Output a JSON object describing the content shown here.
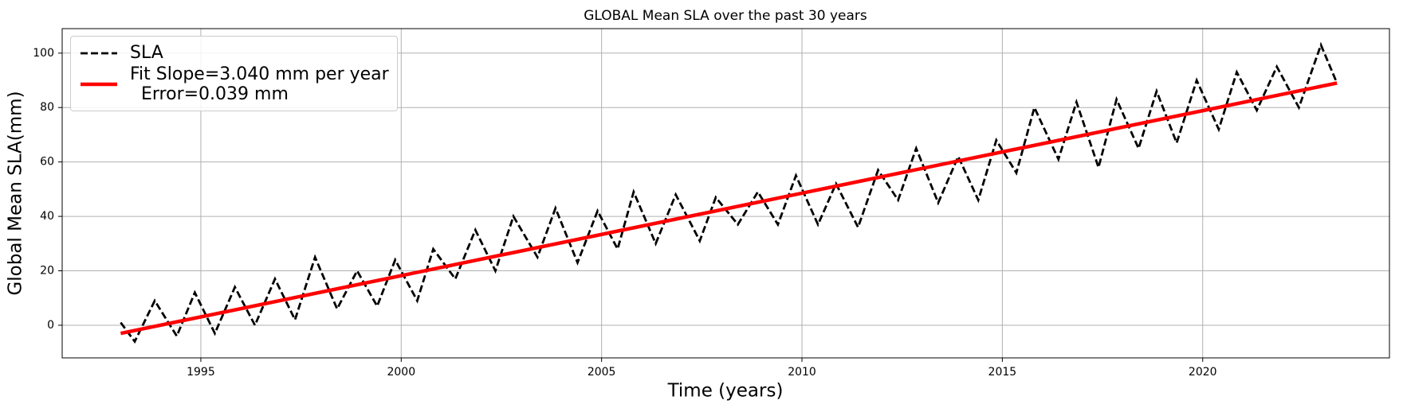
{
  "chart_data": {
    "type": "line",
    "title": "GLOBAL Mean SLA over the past 30 years",
    "xlabel": "Time (years)",
    "ylabel": "Global Mean SLA(mm)",
    "xlim": [
      1991.54,
      2024.66
    ],
    "ylim": [
      -12,
      109
    ],
    "xticks": [
      1995,
      2000,
      2005,
      2010,
      2015,
      2020
    ],
    "yticks": [
      0,
      20,
      40,
      60,
      80,
      100
    ],
    "grid": true,
    "legend": "upper left",
    "series": [
      {
        "name": "SLA",
        "color": "#000000",
        "linestyle": "dashed",
        "x": [
          1993.0,
          1993.35,
          1993.85,
          1994.4,
          1994.85,
          1995.35,
          1995.85,
          1996.35,
          1996.85,
          1997.35,
          1997.85,
          1998.4,
          1998.9,
          1999.4,
          1999.85,
          2000.4,
          2000.8,
          2001.35,
          2001.85,
          2002.35,
          2002.8,
          2003.4,
          2003.85,
          2004.4,
          2004.9,
          2005.4,
          2005.8,
          2006.35,
          2006.85,
          2007.45,
          2007.85,
          2008.4,
          2008.9,
          2009.4,
          2009.85,
          2010.4,
          2010.85,
          2011.4,
          2011.9,
          2012.4,
          2012.85,
          2013.4,
          2013.9,
          2014.4,
          2014.85,
          2015.35,
          2015.8,
          2016.4,
          2016.85,
          2017.4,
          2017.85,
          2018.4,
          2018.85,
          2019.35,
          2019.85,
          2020.4,
          2020.85,
          2021.35,
          2021.85,
          2022.4,
          2022.95,
          2023.35
        ],
        "values": [
          1,
          -6,
          9,
          -4,
          12,
          -3,
          14,
          0,
          17,
          2,
          25,
          6,
          20,
          7,
          24,
          9,
          28,
          17,
          35,
          20,
          40,
          25,
          43,
          23,
          42,
          28,
          49,
          30,
          48,
          31,
          47,
          37,
          49,
          37,
          55,
          37,
          52,
          36,
          57,
          46,
          65,
          45,
          62,
          46,
          68,
          56,
          80,
          61,
          82,
          58,
          83,
          65,
          86,
          67,
          90,
          72,
          93,
          79,
          95,
          80,
          103,
          89
        ]
      },
      {
        "name": "Fit Slope=3.040 mm per year\n  Error=0.039 mm",
        "color": "#ff0000",
        "linestyle": "solid",
        "x": [
          1993.0,
          2023.35
        ],
        "values": [
          -3,
          89
        ]
      }
    ]
  }
}
